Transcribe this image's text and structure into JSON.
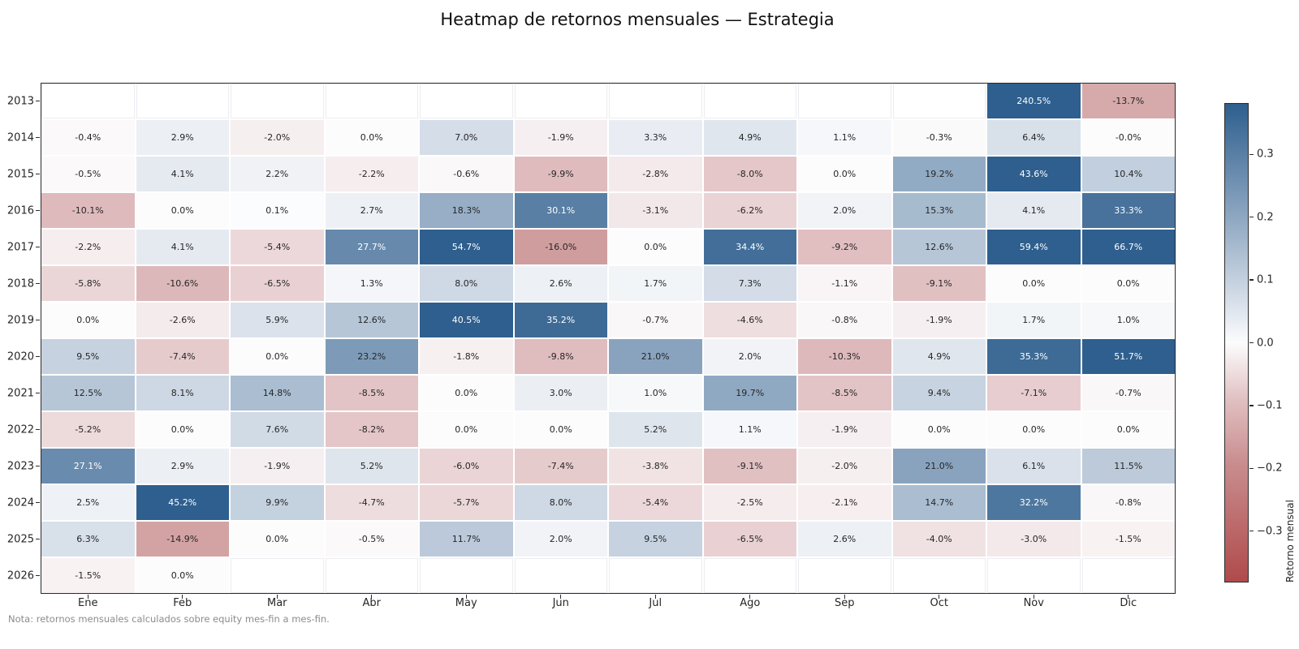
{
  "chart_data": {
    "type": "heatmap",
    "title": "Heatmap de retornos mensuales — Estrategia",
    "note": "Nota: retornos mensuales calculados sobre equity mes-fin a mes-fin.",
    "xlabel": "",
    "ylabel": "",
    "grid": true,
    "rows": [
      "2013",
      "2014",
      "2015",
      "2016",
      "2017",
      "2018",
      "2019",
      "2020",
      "2021",
      "2022",
      "2023",
      "2024",
      "2025",
      "2026"
    ],
    "columns": [
      "Ene",
      "Feb",
      "Mar",
      "Abr",
      "May",
      "Jun",
      "Jul",
      "Ago",
      "Sep",
      "Oct",
      "Nov",
      "Dic"
    ],
    "cells": [
      [
        "",
        "",
        "",
        "",
        "",
        "",
        "",
        "",
        "",
        "",
        "240.5%",
        "-13.7%"
      ],
      [
        "-0.4%",
        "2.9%",
        "-2.0%",
        "0.0%",
        "7.0%",
        "-1.9%",
        "3.3%",
        "4.9%",
        "1.1%",
        "-0.3%",
        "6.4%",
        "-0.0%"
      ],
      [
        "-0.5%",
        "4.1%",
        "2.2%",
        "-2.2%",
        "-0.6%",
        "-9.9%",
        "-2.8%",
        "-8.0%",
        "0.0%",
        "19.2%",
        "43.6%",
        "10.4%"
      ],
      [
        "-10.1%",
        "0.0%",
        "0.1%",
        "2.7%",
        "18.3%",
        "30.1%",
        "-3.1%",
        "-6.2%",
        "2.0%",
        "15.3%",
        "4.1%",
        "33.3%"
      ],
      [
        "-2.2%",
        "4.1%",
        "-5.4%",
        "27.7%",
        "54.7%",
        "-16.0%",
        "0.0%",
        "34.4%",
        "-9.2%",
        "12.6%",
        "59.4%",
        "66.7%"
      ],
      [
        "-5.8%",
        "-10.6%",
        "-6.5%",
        "1.3%",
        "8.0%",
        "2.6%",
        "1.7%",
        "7.3%",
        "-1.1%",
        "-9.1%",
        "0.0%",
        "0.0%"
      ],
      [
        "0.0%",
        "-2.6%",
        "5.9%",
        "12.6%",
        "40.5%",
        "35.2%",
        "-0.7%",
        "-4.6%",
        "-0.8%",
        "-1.9%",
        "1.7%",
        "1.0%"
      ],
      [
        "9.5%",
        "-7.4%",
        "0.0%",
        "23.2%",
        "-1.8%",
        "-9.8%",
        "21.0%",
        "2.0%",
        "-10.3%",
        "4.9%",
        "35.3%",
        "51.7%"
      ],
      [
        "12.5%",
        "8.1%",
        "14.8%",
        "-8.5%",
        "0.0%",
        "3.0%",
        "1.0%",
        "19.7%",
        "-8.5%",
        "9.4%",
        "-7.1%",
        "-0.7%"
      ],
      [
        "-5.2%",
        "0.0%",
        "7.6%",
        "-8.2%",
        "0.0%",
        "0.0%",
        "5.2%",
        "1.1%",
        "-1.9%",
        "0.0%",
        "0.0%",
        "0.0%"
      ],
      [
        "27.1%",
        "2.9%",
        "-1.9%",
        "5.2%",
        "-6.0%",
        "-7.4%",
        "-3.8%",
        "-9.1%",
        "-2.0%",
        "21.0%",
        "6.1%",
        "11.5%"
      ],
      [
        "2.5%",
        "45.2%",
        "9.9%",
        "-4.7%",
        "-5.7%",
        "8.0%",
        "-5.4%",
        "-2.5%",
        "-2.1%",
        "14.7%",
        "32.2%",
        "-0.8%"
      ],
      [
        "6.3%",
        "-14.9%",
        "0.0%",
        "-0.5%",
        "11.7%",
        "2.0%",
        "9.5%",
        "-6.5%",
        "2.6%",
        "-4.0%",
        "-3.0%",
        "-1.5%"
      ],
      [
        "-1.5%",
        "0.0%",
        "",
        "",
        "",
        "",
        "",
        "",
        "",
        "",
        "",
        ""
      ]
    ],
    "colorbar": {
      "label": "Retorno mensual",
      "tick_labels": [
        "0.3",
        "0.2",
        "0.1",
        "0.0",
        "−0.1",
        "−0.2",
        "−0.3"
      ],
      "vmin": -0.382,
      "vmax": 0.382,
      "color_stops": {
        "t_anchors": [
          -1,
          -0.5,
          -0.25,
          0,
          0.25,
          0.5,
          1
        ],
        "colors": [
          "#b04a4b",
          "#c98e8f",
          "#e0bdbf",
          "#fcfcfd",
          "#c6d2e0",
          "#93abc4",
          "#2e5f8e"
        ]
      }
    }
  }
}
